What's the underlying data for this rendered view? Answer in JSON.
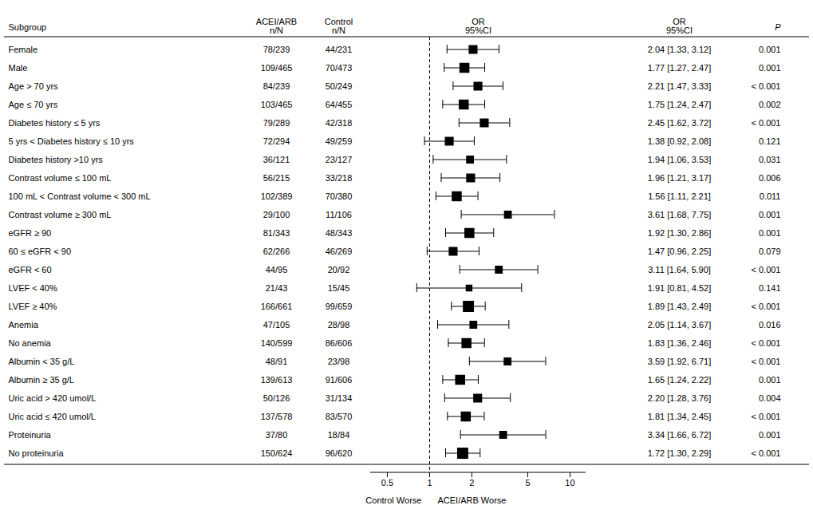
{
  "chart_data": {
    "type": "forest",
    "log": "x",
    "xlim": [
      0.38,
      13.0
    ],
    "xticks": [
      0.5,
      1,
      2,
      5,
      10
    ],
    "reference_line": 1,
    "xlabel_left": "Control Worse",
    "xlabel_right": "ACEI/ARB Worse",
    "headers": {
      "subgroup": "Subgroup",
      "acei_arb": [
        "ACEI/ARB",
        "n/N"
      ],
      "control": [
        "Control",
        "n/N"
      ],
      "forest": [
        "OR",
        "95%CI"
      ],
      "or_text": [
        "OR",
        "95%CI"
      ],
      "p": "P"
    },
    "categories": [
      "Female",
      "Male",
      "Age > 70 yrs",
      "Age ≤ 70 yrs",
      "Diabetes history ≤ 5 yrs",
      "5 yrs < Diabetes history ≤ 10 yrs",
      "Diabetes history >10 yrs",
      "Contrast volume ≤ 100 mL",
      "100 mL < Contrast volume < 300 mL",
      "Contrast volume ≥ 300 mL",
      "eGFR ≥ 90",
      "60 ≤ eGFR < 90",
      "eGFR < 60",
      "LVEF < 40%",
      "LVEF ≥ 40%",
      "Anemia",
      "No anemia",
      "Albumin < 35 g/L",
      "Albumin ≥ 35 g/L",
      "Uric acid > 420 umol/L",
      "Uric acid ≤ 420 umol/L",
      "Proteinuria",
      "No proteinuria"
    ],
    "acei_arb": [
      "78/239",
      "109/465",
      "84/239",
      "103/465",
      "79/289",
      "72/294",
      "36/121",
      "56/215",
      "102/389",
      "29/100",
      "81/343",
      "62/266",
      "44/95",
      "21/43",
      "166/661",
      "47/105",
      "140/599",
      "48/91",
      "139/613",
      "50/126",
      "137/578",
      "37/80",
      "150/624"
    ],
    "control": [
      "44/231",
      "70/473",
      "50/249",
      "64/455",
      "42/318",
      "49/259",
      "23/127",
      "33/218",
      "70/380",
      "11/106",
      "48/343",
      "46/269",
      "20/92",
      "15/45",
      "99/659",
      "28/98",
      "86/606",
      "23/98",
      "91/606",
      "31/134",
      "83/570",
      "18/84",
      "96/620"
    ],
    "values": [
      2.04,
      1.77,
      2.21,
      1.75,
      2.45,
      1.38,
      1.94,
      1.96,
      1.56,
      3.61,
      1.92,
      1.47,
      3.11,
      1.91,
      1.89,
      2.05,
      1.83,
      3.59,
      1.65,
      2.2,
      1.81,
      3.34,
      1.72
    ],
    "ci_low": [
      1.33,
      1.27,
      1.47,
      1.24,
      1.62,
      0.92,
      1.06,
      1.21,
      1.11,
      1.68,
      1.3,
      0.96,
      1.64,
      0.81,
      1.43,
      1.14,
      1.36,
      1.92,
      1.24,
      1.28,
      1.34,
      1.66,
      1.3
    ],
    "ci_high": [
      3.12,
      2.47,
      3.33,
      2.47,
      3.72,
      2.08,
      3.53,
      3.17,
      2.21,
      7.75,
      2.86,
      2.25,
      5.9,
      4.52,
      2.49,
      3.67,
      2.46,
      6.71,
      2.22,
      3.76,
      2.45,
      6.72,
      2.29
    ],
    "value_labels": [
      "2.04 [1.33, 3.12]",
      "1.77 [1.27, 2.47]",
      "2.21 [1.47, 3.33]",
      "1.75 [1.24, 2.47]",
      "2.45 [1.62, 3.72]",
      "1.38 [0.92, 2.08]",
      "1.94 [1.06, 3.53]",
      "1.96 [1.21, 3.17]",
      "1.56 [1.11, 2.21]",
      "3.61 [1.68, 7.75]",
      "1.92 [1.30, 2.86]",
      "1.47 [0.96, 2.25]",
      "3.11 [1.64, 5.90]",
      "1.91 [0.81, 4.52]",
      "1.89 [1.43, 2.49]",
      "2.05 [1.14, 3.67]",
      "1.83 [1.36, 2.46]",
      "3.59 [1.92, 6.71]",
      "1.65 [1.24, 2.22]",
      "2.20 [1.28, 3.76]",
      "1.81 [1.34, 2.45]",
      "3.34 [1.66, 6.72]",
      "1.72 [1.30, 2.29]"
    ],
    "p_labels": [
      "0.001",
      "0.001",
      "< 0.001",
      "0.002",
      "< 0.001",
      "0.121",
      "0.031",
      "0.006",
      "0.011",
      "0.001",
      "0.001",
      "0.079",
      "< 0.001",
      "0.141",
      "< 0.001",
      "0.016",
      "< 0.001",
      "< 0.001",
      "0.001",
      "0.004",
      "< 0.001",
      "0.001",
      "< 0.001"
    ],
    "sizes": [
      7,
      8,
      7,
      8,
      7,
      7,
      6,
      7,
      8,
      6,
      8,
      7,
      6,
      5,
      9,
      6,
      8,
      6,
      8,
      7,
      8,
      6,
      9
    ]
  }
}
